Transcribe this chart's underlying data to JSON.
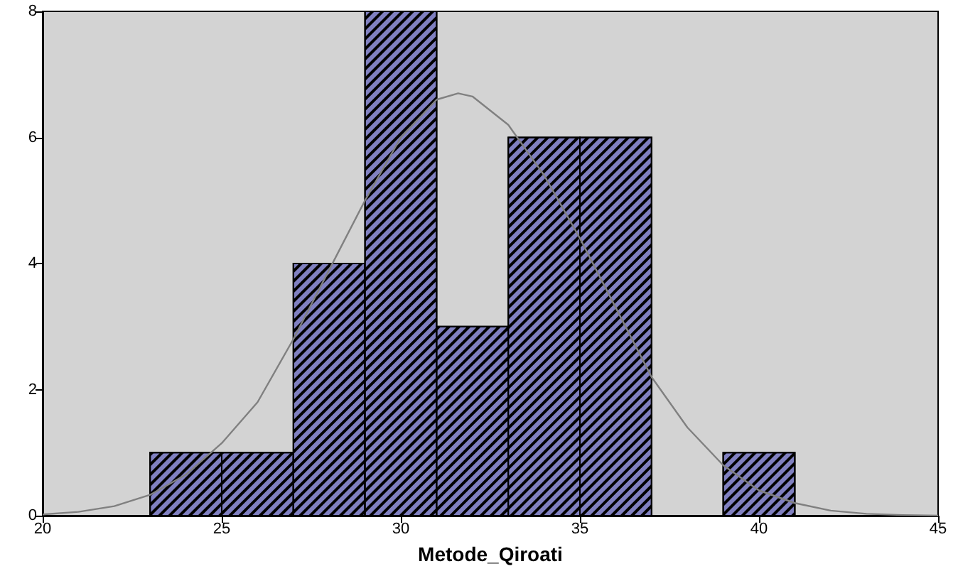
{
  "chart_data": {
    "type": "histogram",
    "xlabel": "Metode_Qiroati",
    "bins": [
      23,
      25,
      27,
      29,
      31,
      33,
      35,
      37,
      39,
      41
    ],
    "values": [
      1,
      1,
      4,
      8,
      3,
      6,
      6,
      0,
      1
    ],
    "color": "#8080c0",
    "xlim": [
      20,
      45
    ],
    "xticks": [
      20,
      25,
      30,
      35,
      40,
      45
    ],
    "ylim": [
      0,
      8
    ],
    "yticks": [
      0,
      2,
      4,
      6,
      8
    ],
    "grid": false,
    "series": [
      {
        "type": "line",
        "color": "#808080",
        "x": [
          20,
          21,
          22,
          23,
          24,
          25,
          26,
          27,
          28,
          29,
          30,
          31,
          31.6,
          32,
          33,
          34,
          35,
          36,
          37,
          38,
          39,
          40,
          41,
          42,
          43,
          44,
          45
        ],
        "values": [
          0.02,
          0.06,
          0.15,
          0.33,
          0.65,
          1.15,
          1.8,
          2.8,
          3.9,
          5.0,
          6.0,
          6.6,
          6.7,
          6.65,
          6.2,
          5.4,
          4.4,
          3.3,
          2.2,
          1.4,
          0.8,
          0.4,
          0.2,
          0.08,
          0.03,
          0.01,
          0
        ]
      }
    ]
  }
}
